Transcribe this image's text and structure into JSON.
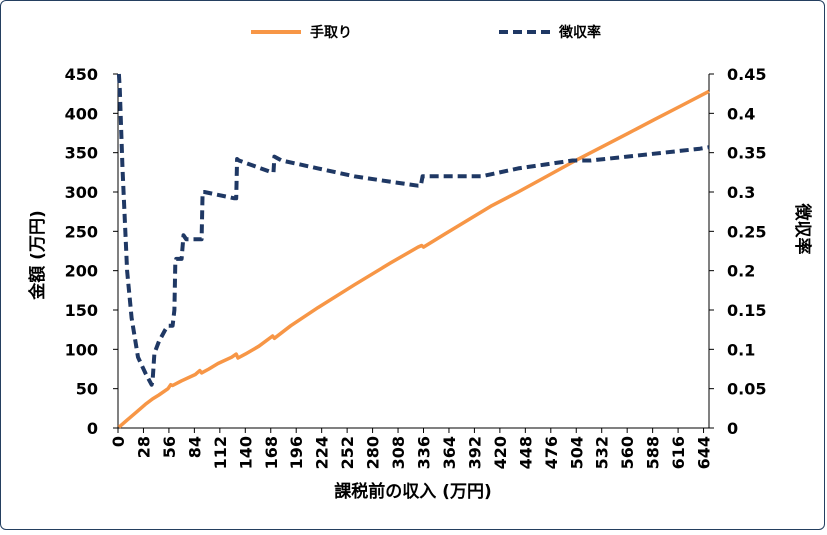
{
  "chart_data": {
    "type": "line",
    "xlabel": "課税前の収入 (万円)",
    "ylabel": "金額 (万円)",
    "y2label": "徴収率",
    "xlim": [
      0,
      650
    ],
    "ylim": [
      0,
      450
    ],
    "y2lim": [
      0,
      0.45
    ],
    "x_ticks": [
      0,
      28,
      56,
      84,
      112,
      140,
      168,
      196,
      224,
      252,
      280,
      308,
      336,
      364,
      392,
      420,
      448,
      476,
      504,
      532,
      560,
      588,
      616,
      644
    ],
    "y_ticks": [
      0,
      50,
      100,
      150,
      200,
      250,
      300,
      350,
      400,
      450
    ],
    "y2_ticks": [
      "0",
      "0.05",
      "0.1",
      "0.15",
      "0.2",
      "0.25",
      "0.3",
      "0.35",
      "0.4",
      "0.45"
    ],
    "legend_position": "top",
    "grid": false,
    "series": [
      {
        "name": "手取り",
        "axis": "left",
        "color": "#f79646",
        "style": "solid",
        "x": [
          1,
          10,
          20,
          30,
          38,
          45,
          55,
          58,
          60,
          70,
          85,
          90,
          92,
          100,
          110,
          125,
          130,
          132,
          140,
          155,
          170,
          172,
          190,
          220,
          260,
          300,
          330,
          334,
          336,
          360,
          390,
          410,
          440,
          470,
          500,
          530,
          560,
          590,
          620,
          650
        ],
        "y": [
          1,
          10,
          20,
          30,
          37,
          42,
          50,
          55,
          54,
          60,
          68,
          73,
          70,
          75,
          82,
          90,
          94,
          89,
          94,
          104,
          117,
          114,
          130,
          153,
          182,
          210,
          230,
          232,
          230,
          247,
          268,
          282,
          300,
          319,
          338,
          356,
          374,
          392,
          410,
          428
        ]
      },
      {
        "name": "徴収率",
        "axis": "right",
        "color": "#1f3864",
        "style": "dashed",
        "x": [
          1,
          2,
          5,
          10,
          15,
          22,
          30,
          37,
          38,
          40,
          45,
          52,
          55,
          60,
          62,
          63,
          64,
          70,
          72,
          75,
          88,
          92,
          93,
          95,
          128,
          130,
          131,
          133,
          169,
          171,
          172,
          180,
          220,
          260,
          300,
          330,
          333,
          335,
          340,
          400,
          440,
          470,
          500,
          520,
          560,
          600,
          640,
          650
        ],
        "y": [
          0.45,
          0.43,
          0.33,
          0.2,
          0.14,
          0.09,
          0.07,
          0.055,
          0.06,
          0.095,
          0.11,
          0.125,
          0.13,
          0.13,
          0.15,
          0.21,
          0.215,
          0.215,
          0.245,
          0.24,
          0.24,
          0.24,
          0.3,
          0.3,
          0.292,
          0.292,
          0.342,
          0.34,
          0.325,
          0.325,
          0.345,
          0.34,
          0.33,
          0.32,
          0.313,
          0.308,
          0.308,
          0.32,
          0.32,
          0.32,
          0.33,
          0.335,
          0.34,
          0.34,
          0.345,
          0.35,
          0.355,
          0.357
        ]
      }
    ]
  }
}
